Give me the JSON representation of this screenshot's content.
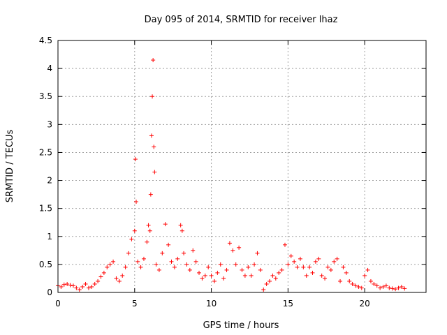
{
  "chart_data": {
    "type": "scatter",
    "title": "Day 095 of 2014, SRMTID for receiver lhaz",
    "xlabel": "GPS time / hours",
    "ylabel": "SRMTID / TECUs",
    "xlim": [
      0,
      24
    ],
    "ylim": [
      0,
      4.5
    ],
    "xticks": [
      0,
      5,
      10,
      15,
      20
    ],
    "xtick_labels": [
      "0",
      "5",
      "10",
      "15",
      "20"
    ],
    "yticks": [
      0,
      0.5,
      1,
      1.5,
      2,
      2.5,
      3,
      3.5,
      4,
      4.5
    ],
    "ytick_labels": [
      "0",
      "0.5",
      "1",
      "1.5",
      "2",
      "2.5",
      "3",
      "3.5",
      "4",
      "4.5"
    ],
    "grid": true,
    "marker": "+",
    "series": [
      {
        "name": "lhaz",
        "color": "#ff0000",
        "x": [
          0.0,
          0.2,
          0.4,
          0.6,
          0.8,
          1.0,
          1.2,
          1.4,
          1.6,
          1.8,
          2.0,
          2.2,
          2.4,
          2.6,
          2.8,
          3.0,
          3.2,
          3.4,
          3.6,
          3.8,
          4.0,
          4.2,
          4.4,
          4.6,
          4.8,
          5.0,
          5.05,
          5.1,
          5.2,
          5.4,
          5.6,
          5.8,
          5.9,
          6.0,
          6.05,
          6.1,
          6.15,
          6.2,
          6.25,
          6.3,
          6.4,
          6.6,
          6.8,
          7.0,
          7.2,
          7.4,
          7.6,
          7.8,
          8.0,
          8.1,
          8.2,
          8.4,
          8.6,
          8.8,
          9.0,
          9.2,
          9.4,
          9.6,
          9.8,
          10.0,
          10.2,
          10.4,
          10.6,
          10.8,
          11.0,
          11.2,
          11.4,
          11.6,
          11.8,
          12.0,
          12.2,
          12.4,
          12.6,
          12.8,
          13.0,
          13.2,
          13.4,
          13.6,
          13.8,
          14.0,
          14.2,
          14.4,
          14.6,
          14.8,
          15.0,
          15.2,
          15.4,
          15.6,
          15.8,
          16.0,
          16.2,
          16.4,
          16.6,
          16.8,
          17.0,
          17.2,
          17.4,
          17.6,
          17.8,
          18.0,
          18.2,
          18.4,
          18.6,
          18.8,
          19.0,
          19.2,
          19.4,
          19.6,
          19.8,
          20.0,
          20.2,
          20.4,
          20.6,
          20.8,
          21.0,
          21.2,
          21.4,
          21.6,
          21.8,
          22.0,
          22.2,
          22.4,
          22.6
        ],
        "y": [
          0.12,
          0.1,
          0.14,
          0.15,
          0.13,
          0.12,
          0.08,
          0.05,
          0.1,
          0.15,
          0.08,
          0.1,
          0.15,
          0.2,
          0.28,
          0.35,
          0.45,
          0.5,
          0.55,
          0.25,
          0.2,
          0.3,
          0.45,
          0.7,
          0.95,
          1.1,
          2.38,
          1.62,
          0.55,
          0.45,
          0.6,
          0.9,
          1.2,
          1.1,
          1.75,
          2.8,
          3.5,
          4.15,
          2.6,
          2.15,
          0.5,
          0.4,
          0.7,
          1.22,
          0.85,
          0.55,
          0.45,
          0.6,
          1.2,
          1.1,
          0.7,
          0.5,
          0.4,
          0.75,
          0.55,
          0.35,
          0.25,
          0.3,
          0.45,
          0.3,
          0.2,
          0.35,
          0.5,
          0.25,
          0.4,
          0.88,
          0.75,
          0.5,
          0.8,
          0.4,
          0.3,
          0.45,
          0.3,
          0.5,
          0.7,
          0.4,
          0.05,
          0.15,
          0.2,
          0.3,
          0.25,
          0.35,
          0.4,
          0.85,
          0.5,
          0.65,
          0.55,
          0.45,
          0.6,
          0.45,
          0.3,
          0.45,
          0.35,
          0.55,
          0.6,
          0.3,
          0.25,
          0.45,
          0.4,
          0.55,
          0.6,
          0.2,
          0.45,
          0.35,
          0.2,
          0.15,
          0.12,
          0.1,
          0.08,
          0.3,
          0.4,
          0.2,
          0.15,
          0.12,
          0.08,
          0.1,
          0.12,
          0.08,
          0.07,
          0.06,
          0.08,
          0.1,
          0.07
        ]
      }
    ]
  }
}
